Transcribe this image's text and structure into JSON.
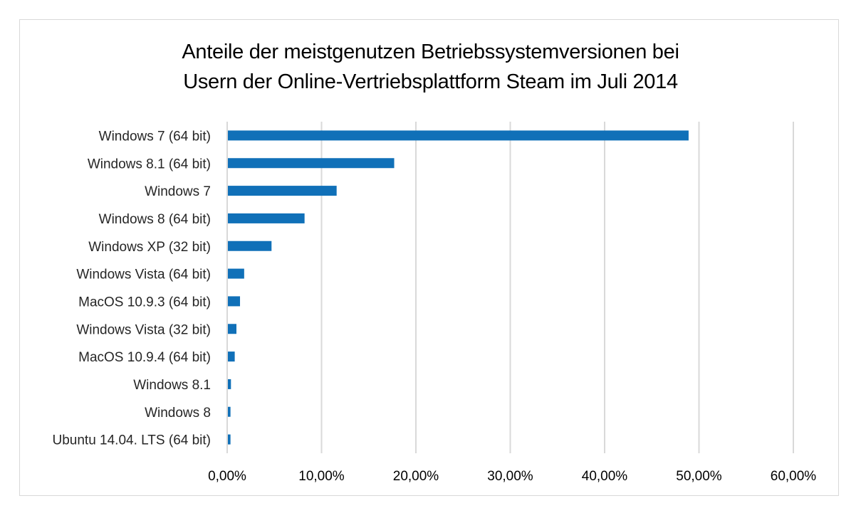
{
  "chart_data": {
    "type": "bar",
    "orientation": "horizontal",
    "title": [
      "Anteile der meistgenutzen Betriebssystemversionen bei",
      "Usern der Online-Vertriebsplattform Steam im Juli 2014"
    ],
    "xlabel": "",
    "ylabel": "",
    "categories": [
      "Windows 7 (64 bit)",
      "Windows 8.1 (64 bit)",
      "Windows 7",
      "Windows 8 (64 bit)",
      "Windows XP (32 bit)",
      "Windows Vista (64 bit)",
      "MacOS 10.9.3 (64 bit)",
      "Windows Vista (32 bit)",
      "MacOS 10.9.4 (64 bit)",
      "Windows 8.1",
      "Windows 8",
      "Ubuntu 14.04. LTS (64 bit)"
    ],
    "values": [
      48.9,
      17.7,
      11.6,
      8.2,
      4.7,
      1.8,
      1.36,
      0.98,
      0.8,
      0.4,
      0.35,
      0.35
    ],
    "unit": "%",
    "xlim": [
      0,
      60
    ],
    "xticks": [
      0,
      10,
      20,
      30,
      40,
      50,
      60
    ],
    "xtick_labels": [
      "0,00%",
      "10,00%",
      "20,00%",
      "30,00%",
      "40,00%",
      "50,00%",
      "60,00%"
    ],
    "grid": "vertical",
    "legend": "none",
    "bar_color": "#1070b8",
    "grid_color": "#d9d9d9"
  }
}
